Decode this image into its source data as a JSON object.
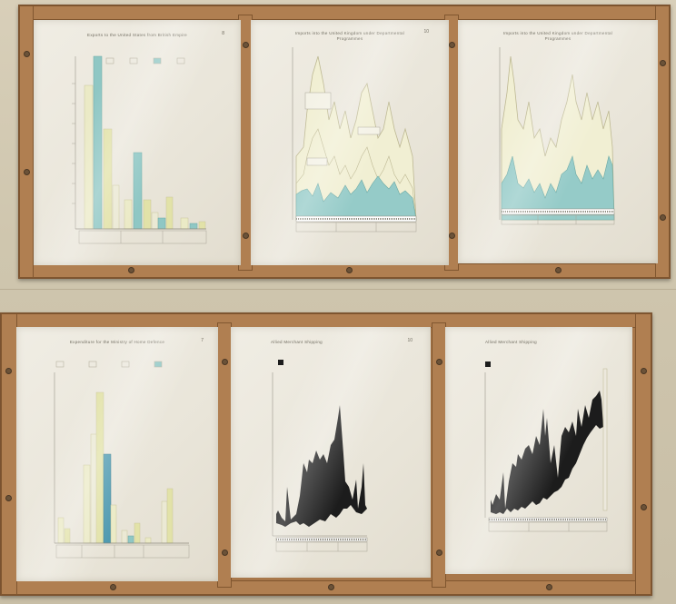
{
  "panels": [
    {
      "title": "Exports to the United States from British Empire",
      "number": "8"
    },
    {
      "title": "Imports into the United Kingdom under Departmental Programmes",
      "number": "10"
    },
    {
      "title": "Imports into the United Kingdom under Departmental Programmes",
      "number": ""
    },
    {
      "title": "Expenditure for the Ministry of Home Defence",
      "number": "7"
    },
    {
      "title": "Allied Merchant Shipping",
      "number": "10"
    },
    {
      "title": "Allied Merchant Shipping",
      "number": ""
    }
  ],
  "colors": {
    "wood": "#a8774a",
    "paper": "#ece8dd",
    "yellow": "#e2e2a8",
    "blue": "#8fc7c4",
    "black": "#1c1c1c",
    "wall": "#d2c8b0"
  }
}
